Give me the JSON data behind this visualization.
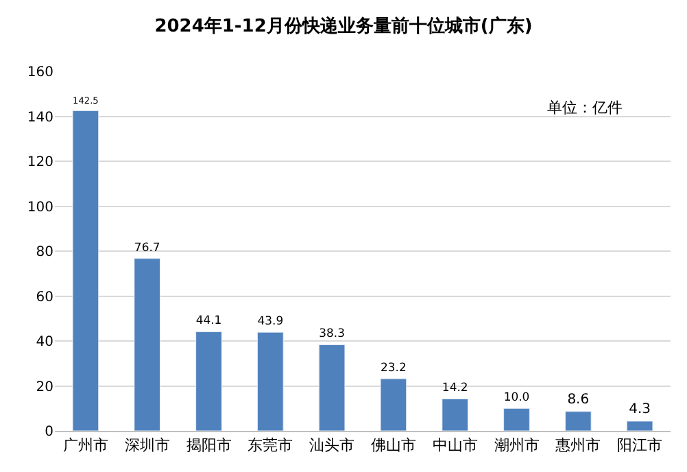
{
  "chart_data": {
    "type": "bar",
    "title": "2024年1-12月份快递业务量前十位城市(广东)",
    "categories": [
      "广州市",
      "深圳市",
      "揭阳市",
      "东莞市",
      "汕头市",
      "佛山市",
      "中山市",
      "潮州市",
      "惠州市",
      "阳江市"
    ],
    "values": [
      142.5,
      76.7,
      44.1,
      43.9,
      38.3,
      23.2,
      14.2,
      10.0,
      8.6,
      4.3
    ],
    "value_labels": [
      "142.5",
      "76.7",
      "44.1",
      "43.9",
      "38.3",
      "23.2",
      "14.2",
      "10.0",
      "8.6",
      "4.3"
    ],
    "color": "#4f81bd",
    "ylim": [
      0,
      160
    ],
    "yticks": [
      0,
      20,
      40,
      60,
      80,
      100,
      120,
      140,
      160
    ],
    "grid": "y",
    "legend": false,
    "annotations": [
      "单位：亿件"
    ]
  }
}
